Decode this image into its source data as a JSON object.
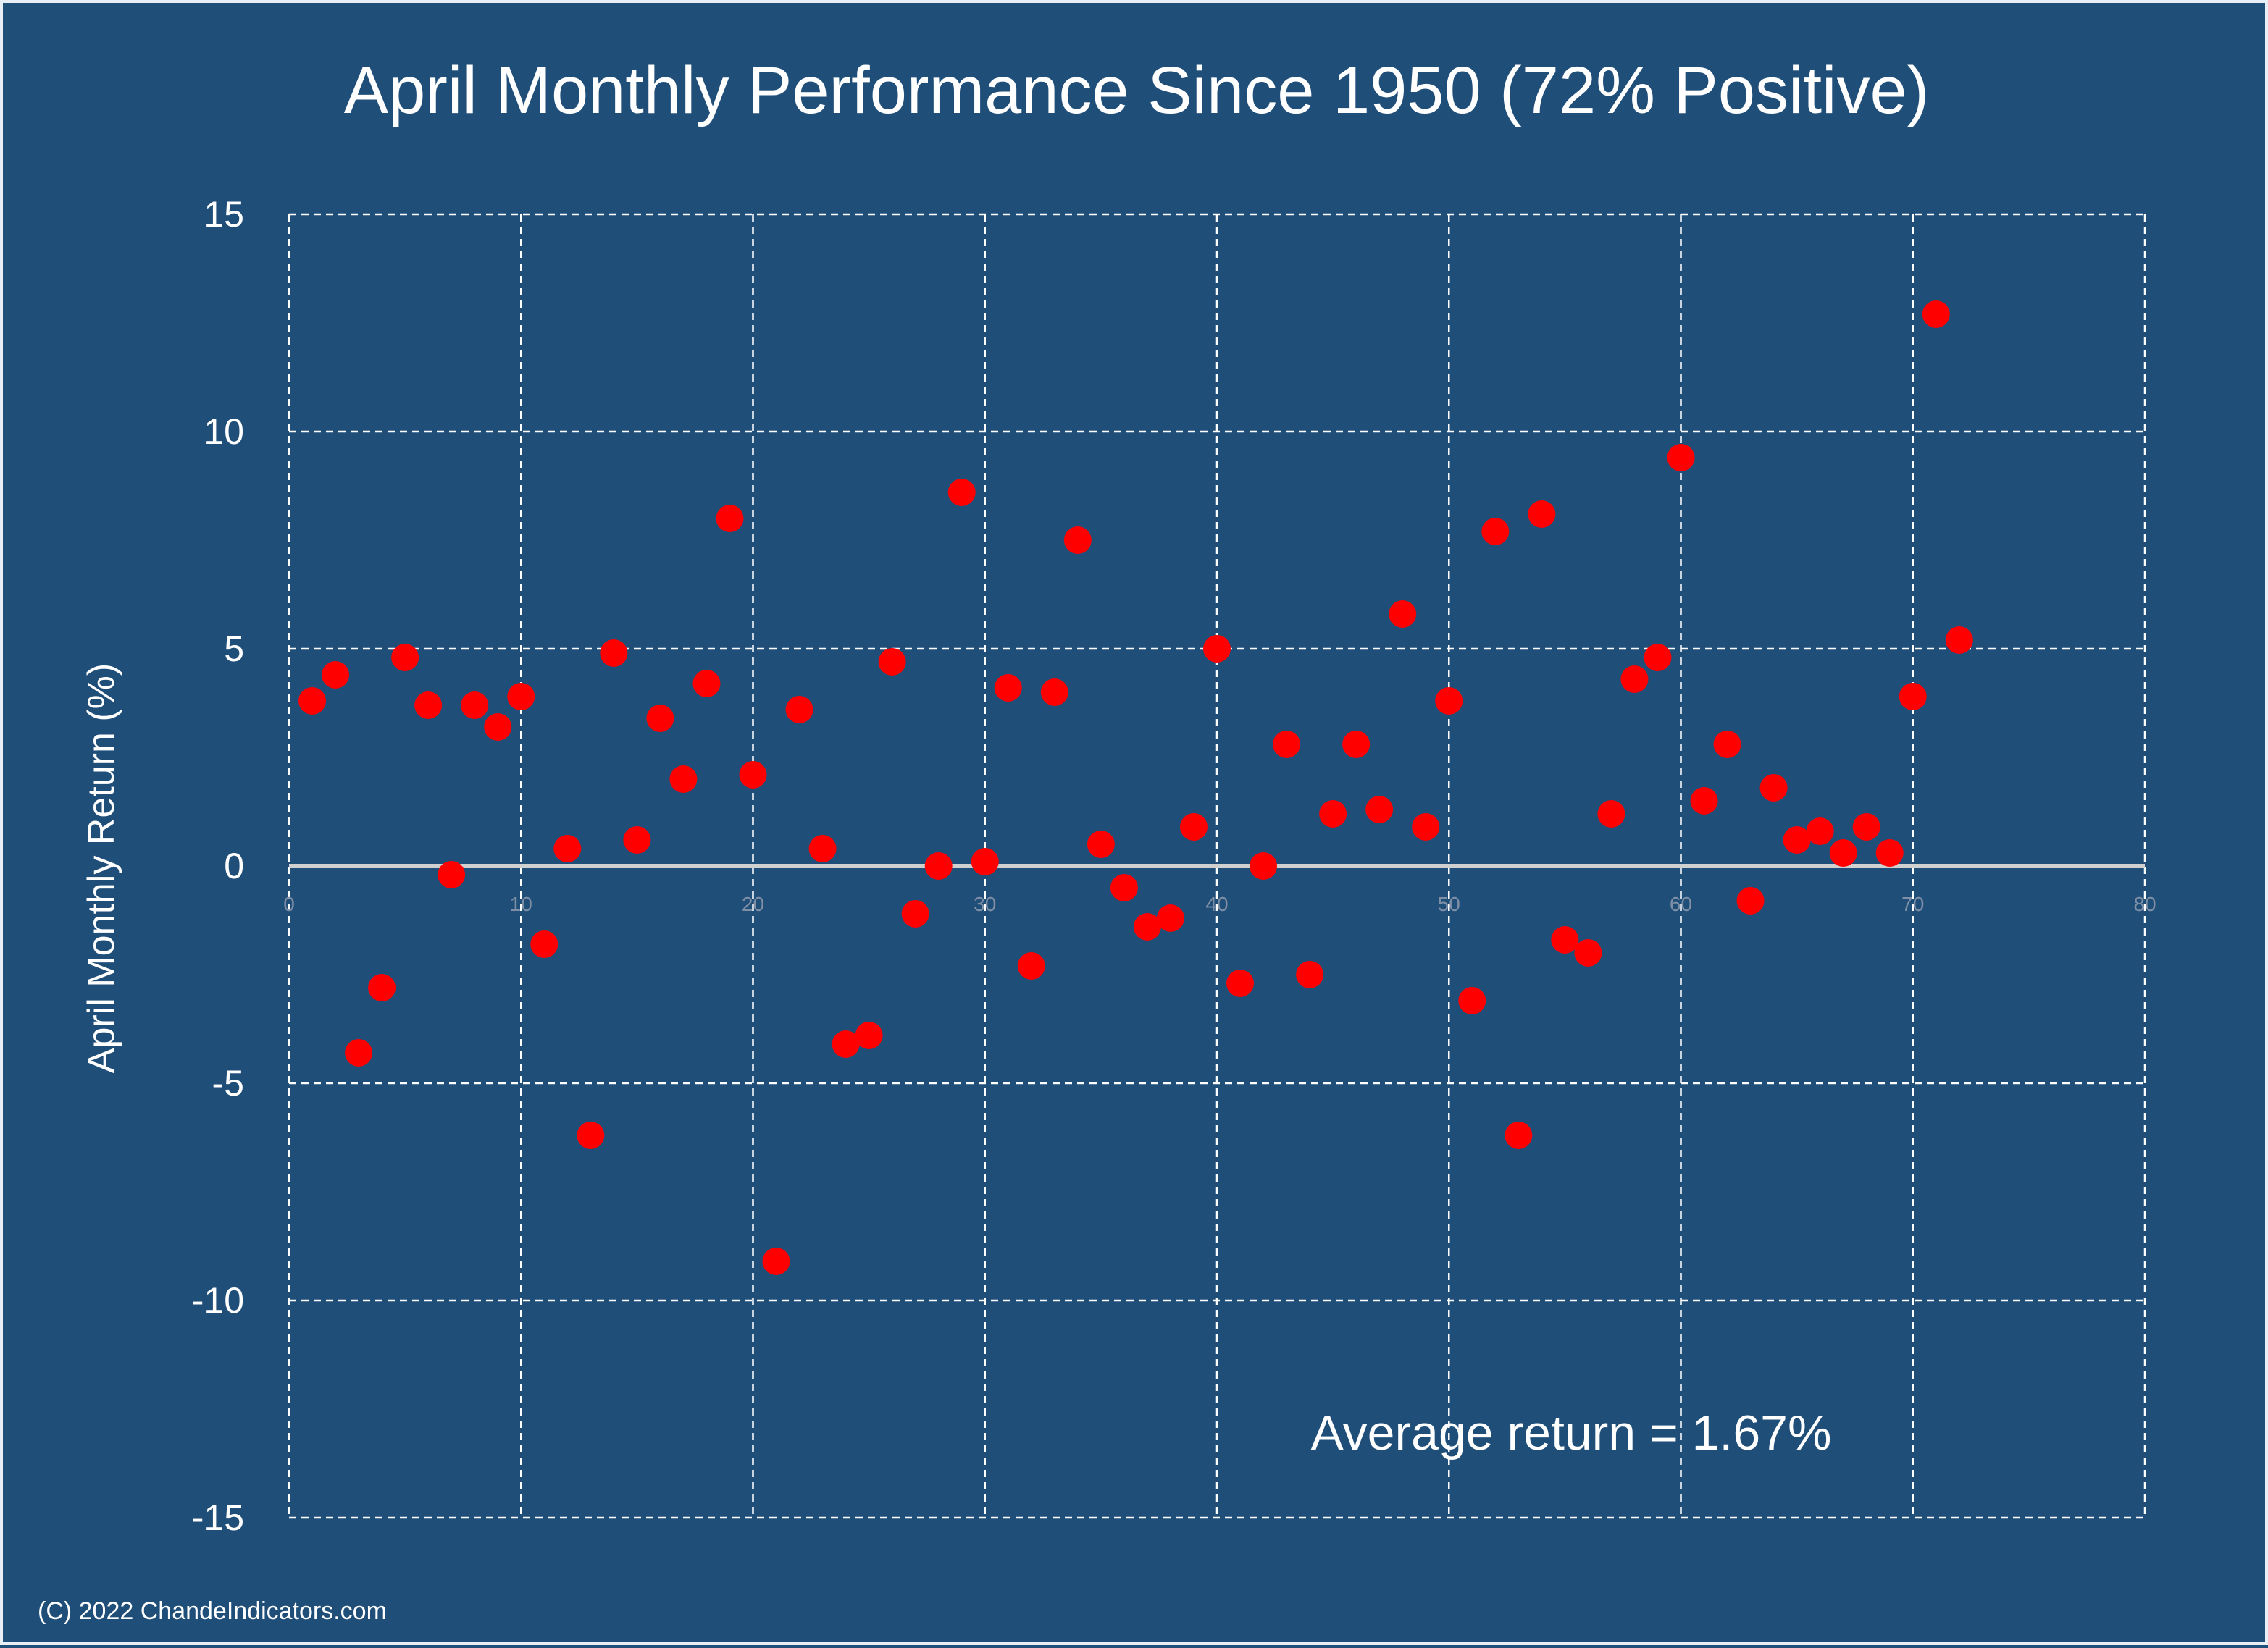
{
  "colors": {
    "background": "#1f4e79",
    "point": "#ff0000",
    "grid": "#ffffff",
    "zero_line": "#d0d0d0"
  },
  "chart_data": {
    "type": "scatter",
    "title": "April Monthly Performance Since 1950 (72% Positive)",
    "xlabel": "",
    "ylabel": "April Monthly Return (%)",
    "xlim": [
      0,
      80
    ],
    "ylim": [
      -15,
      15
    ],
    "x_ticks": [
      0,
      10,
      20,
      30,
      40,
      50,
      60,
      70,
      80
    ],
    "y_ticks": [
      15,
      10,
      5,
      0,
      -5,
      -10,
      -15
    ],
    "y_tick_labels": [
      "15",
      "10",
      "5",
      "0",
      "-5",
      "-10",
      "-15"
    ],
    "grid": true,
    "legend": "none",
    "annotation": "Average return = 1.67%",
    "series": [
      {
        "x": [
          1,
          2,
          3,
          4,
          5,
          6,
          7,
          8,
          9,
          10,
          11,
          12,
          13,
          14,
          15,
          16,
          17,
          18,
          19,
          20,
          21,
          22,
          23,
          24,
          25,
          26,
          27,
          28,
          29,
          30,
          31,
          32,
          33,
          34,
          35,
          36,
          37,
          38,
          39,
          40,
          41,
          42,
          43,
          44,
          45,
          46,
          47,
          48,
          49,
          50,
          51,
          52,
          53,
          54,
          55,
          56,
          57,
          58,
          59,
          60,
          61,
          62,
          63,
          64,
          65,
          66,
          67,
          68,
          69,
          70,
          71,
          72
        ],
        "y": [
          3.8,
          4.4,
          -4.3,
          -2.8,
          4.8,
          3.7,
          -0.2,
          3.7,
          3.2,
          3.9,
          -1.8,
          0.4,
          -6.2,
          4.9,
          0.6,
          3.4,
          2.0,
          4.2,
          8.0,
          2.1,
          -9.1,
          3.6,
          0.4,
          -4.1,
          -3.9,
          4.7,
          -1.1,
          0.0,
          8.6,
          0.1,
          4.1,
          -2.3,
          4.0,
          7.5,
          0.5,
          -0.5,
          -1.4,
          -1.2,
          0.9,
          5.0,
          -2.7,
          0.0,
          2.8,
          -2.5,
          1.2,
          2.8,
          1.3,
          5.8,
          0.9,
          3.8,
          -3.1,
          7.7,
          -6.2,
          8.1,
          -1.7,
          -2.0,
          1.2,
          4.3,
          4.8,
          9.4,
          1.5,
          2.8,
          -0.8,
          1.8,
          0.6,
          0.8,
          0.3,
          0.9,
          0.3,
          3.9,
          12.7,
          5.2
        ]
      }
    ]
  },
  "footer": {
    "copyright": "(C) 2022 ChandeIndicators.com"
  }
}
